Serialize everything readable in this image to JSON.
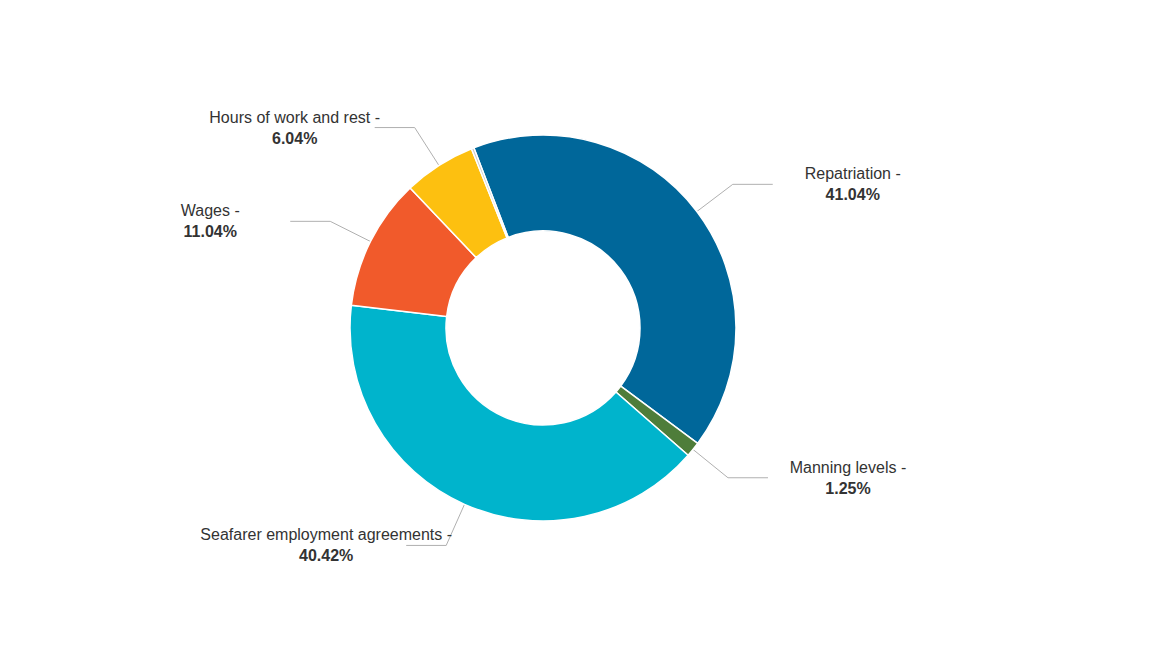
{
  "chart_data": {
    "type": "pie",
    "categories": [
      "Repatriation -",
      "Manning levels -",
      "Seafarer employment agreements -",
      "Wages -",
      "Hours of work and rest -",
      null
    ],
    "values": [
      41.04,
      1.25,
      40.42,
      11.04,
      6.04,
      0.21
    ],
    "value_labels": [
      "41.04%",
      "1.25%",
      "40.42%",
      "11.04%",
      "6.04%",
      null
    ],
    "colors": [
      "#00679a",
      "#4e7d3a",
      "#00b4cc",
      "#f15a2b",
      "#fdc010",
      "#c8c8c8"
    ],
    "data_labels": true
  }
}
